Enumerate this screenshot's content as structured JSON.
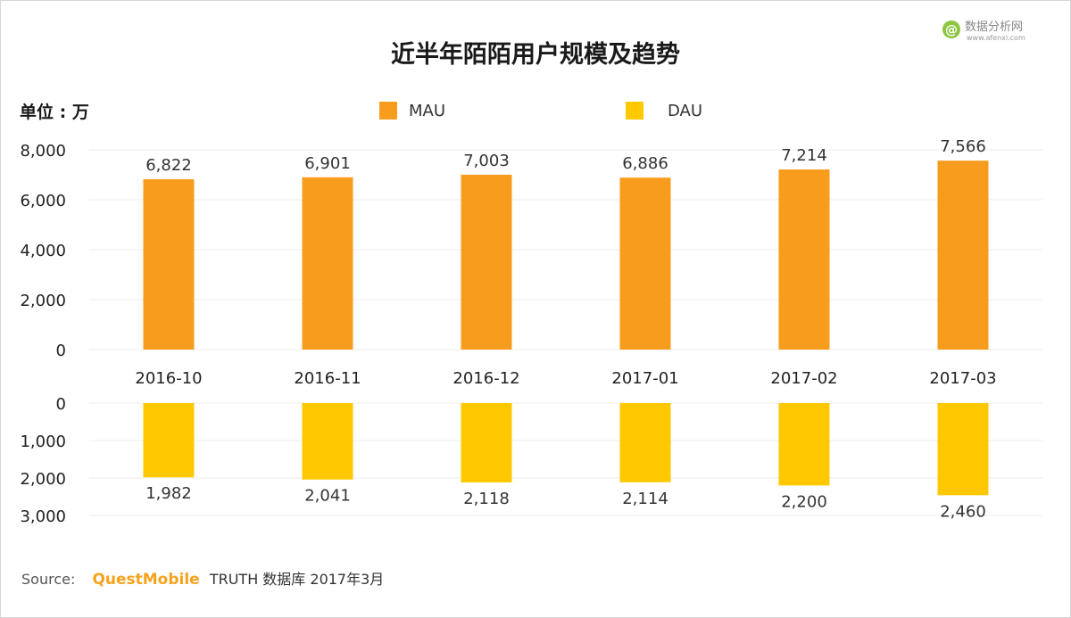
{
  "chart_data": {
    "type": "bar",
    "title": "近半年陌陌用户规模及趋势",
    "unit_label": "单位 : 万",
    "categories": [
      "2016-10",
      "2016-11",
      "2016-12",
      "2017-01",
      "2017-02",
      "2017-03"
    ],
    "series": [
      {
        "name": "MAU",
        "color": "#f89c1e",
        "values": [
          6822,
          6901,
          7003,
          6886,
          7214,
          7566
        ],
        "labels": [
          "6,822",
          "6,901",
          "7,003",
          "6,886",
          "7,214",
          "7,566"
        ]
      },
      {
        "name": "DAU",
        "color": "#ffc800",
        "values": [
          1982,
          2041,
          2118,
          2114,
          2200,
          2460
        ],
        "labels": [
          "1,982",
          "2,041",
          "2,118",
          "2,114",
          "2,200",
          "2,460"
        ]
      }
    ],
    "mau_axis": {
      "ylim": [
        0,
        8000
      ],
      "ticks": [
        "0",
        "2,000",
        "4,000",
        "6,000",
        "8,000"
      ]
    },
    "dau_axis": {
      "ylim": [
        0,
        3000
      ],
      "inverted": true,
      "ticks": [
        "0",
        "1,000",
        "2,000",
        "3,000"
      ]
    },
    "legend_placement": "top-center",
    "grid": true
  },
  "source": {
    "label": "Source:",
    "brand": "QuestMobile",
    "rest": "TRUTH 数据库 2017年3月"
  },
  "watermark": {
    "text": "数据分析网",
    "sub": "www.afenxi.com",
    "icon": "at-sign-icon"
  }
}
